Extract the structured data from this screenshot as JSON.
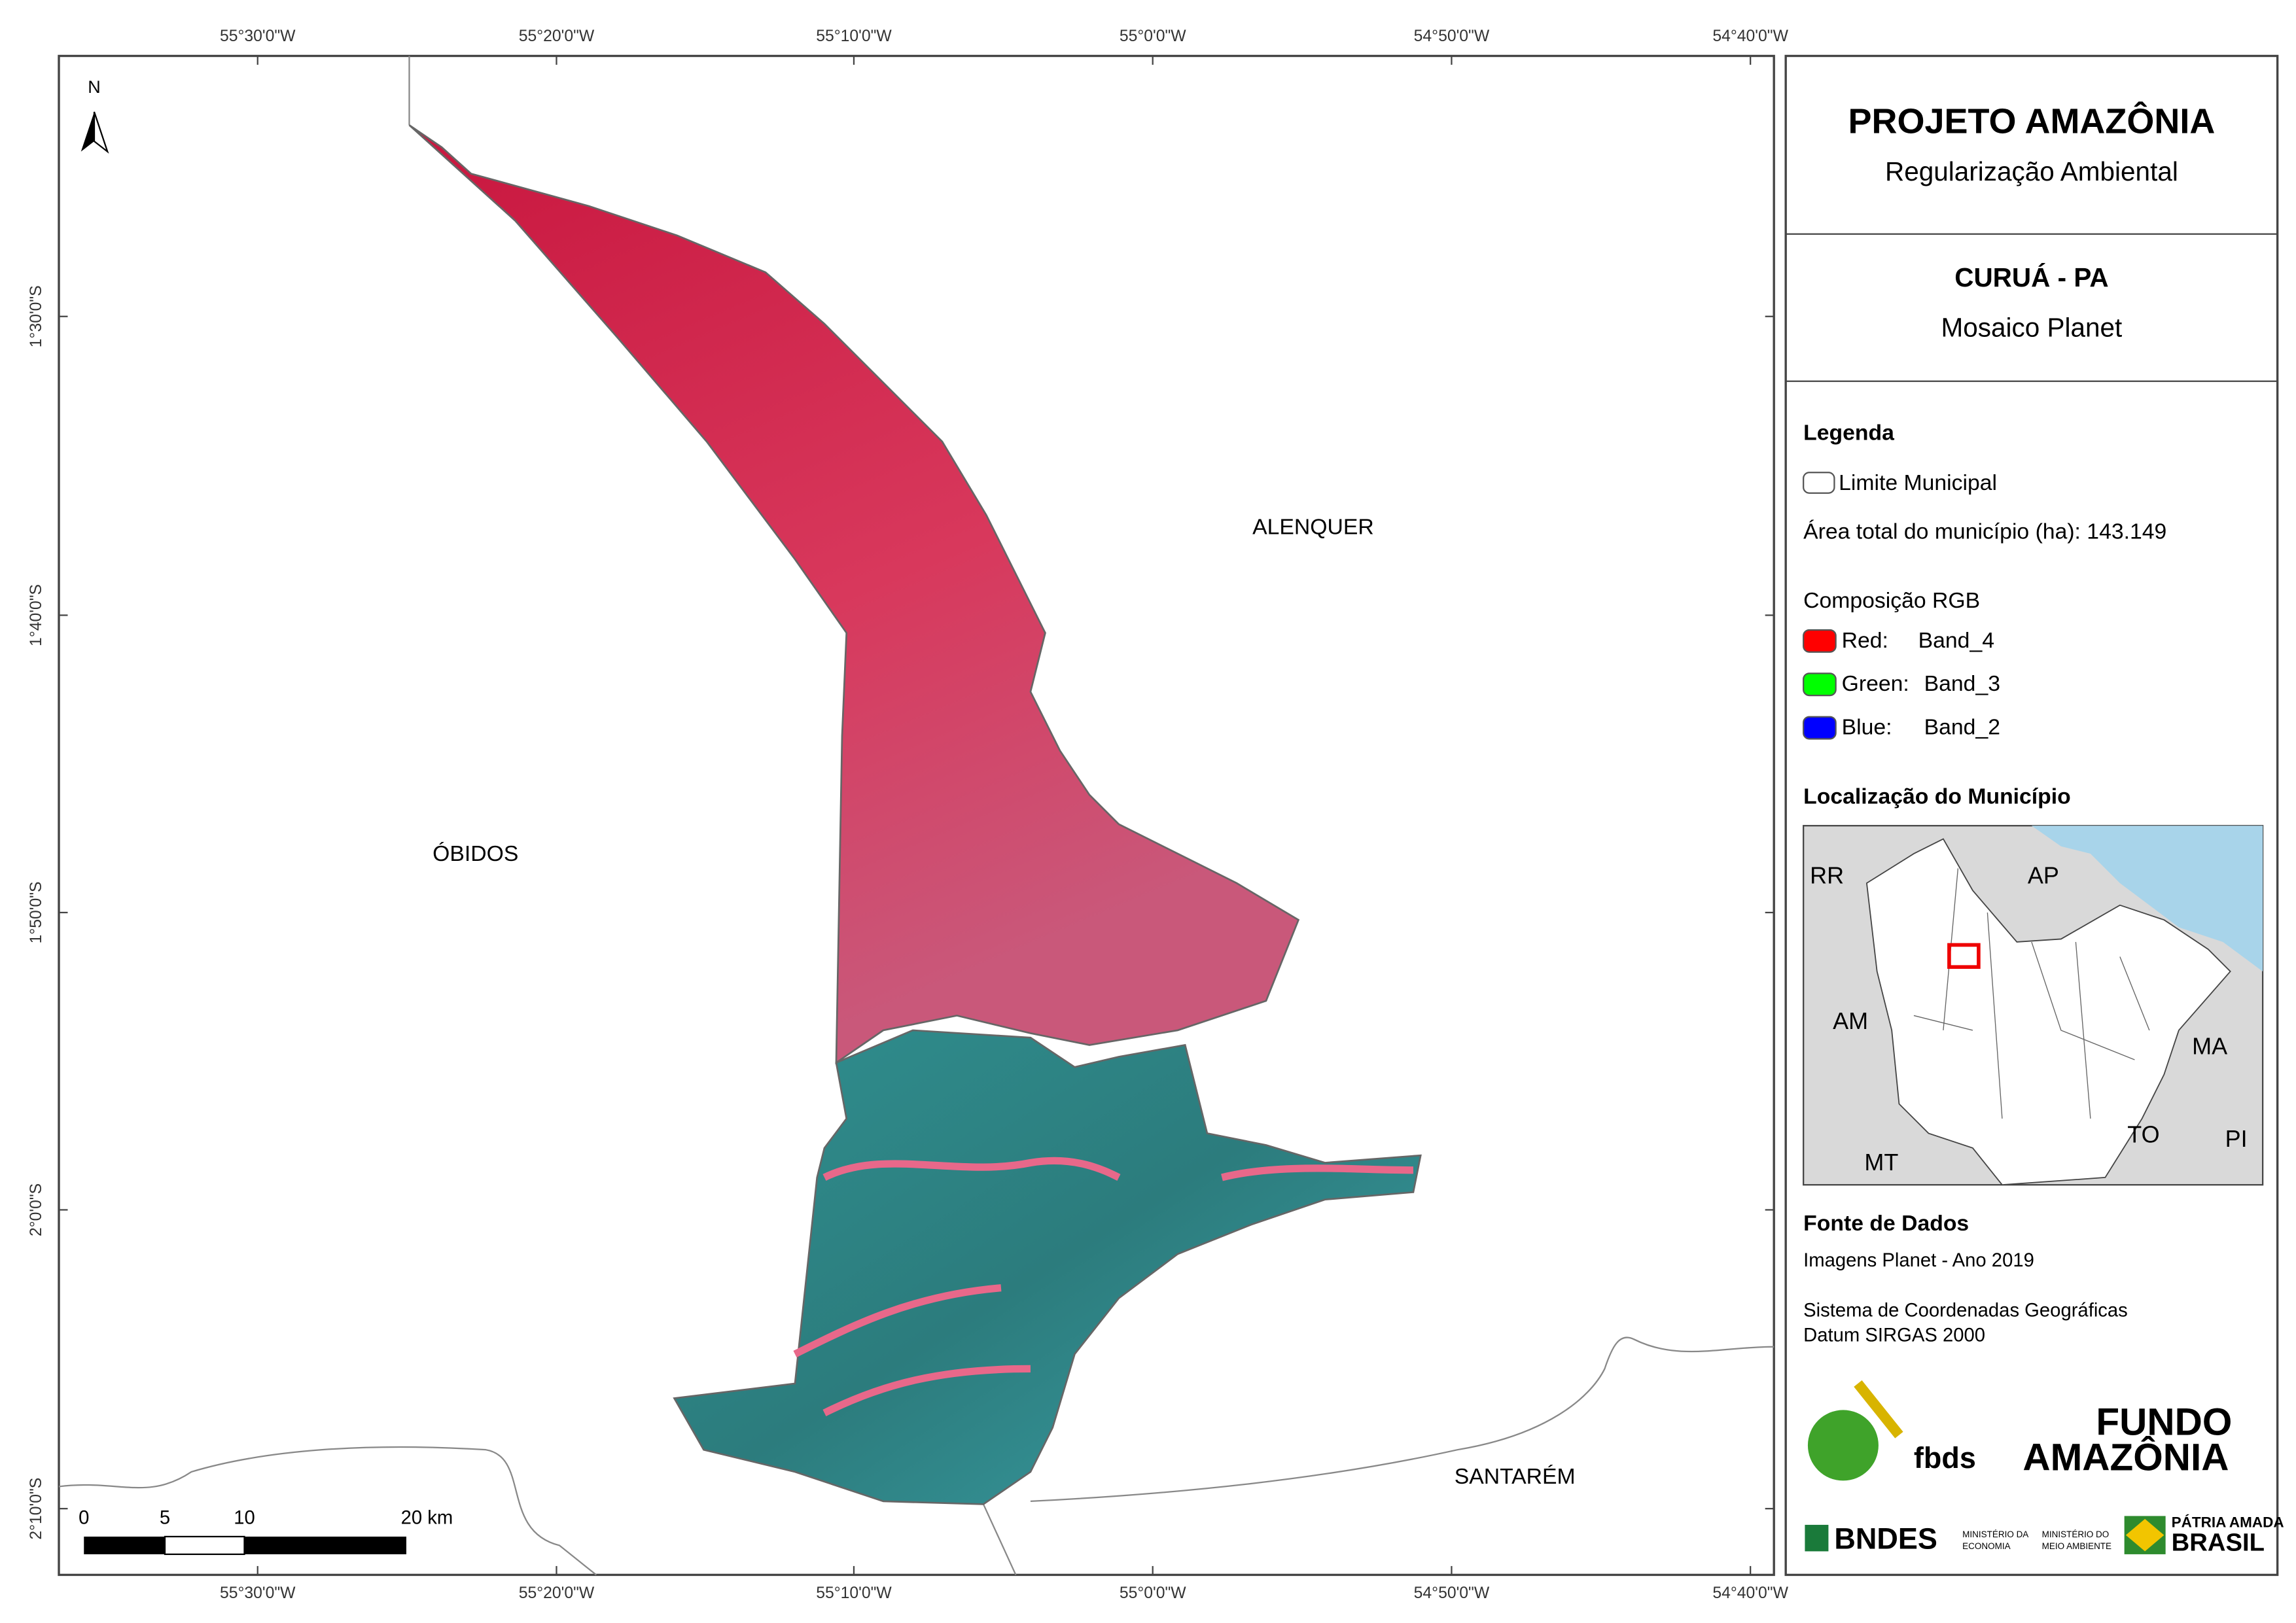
{
  "map": {
    "lon_labels": [
      "55°30'0\"W",
      "55°20'0\"W",
      "55°10'0\"W",
      "55°0'0\"W",
      "54°50'0\"W",
      "54°40'0\"W"
    ],
    "lat_labels": [
      "1°30'0\"S",
      "1°40'0\"S",
      "1°50'0\"S",
      "2°0'0\"S",
      "2°10'0\"S"
    ],
    "north": "N",
    "places": [
      "ALENQUER",
      "ÓBIDOS",
      "SANTARÉM"
    ],
    "scale_bar": [
      "0",
      "5",
      "10",
      "20 km"
    ]
  },
  "header": {
    "title": "PROJETO AMAZÔNIA",
    "subtitle": "Regularização Ambiental"
  },
  "area": {
    "title": "CURUÁ - PA",
    "subtitle": "Mosaico Planet"
  },
  "legend": {
    "title": "Legenda",
    "boundary": "Limite Municipal",
    "total_area": "Área total do município (ha): 143.149",
    "rgb_title": "Composição RGB",
    "bands": [
      {
        "label": "Red:",
        "band": "Band_4",
        "color": "#ff0000"
      },
      {
        "label": "Green:",
        "band": "Band_3",
        "color": "#00ff00"
      },
      {
        "label": "Blue:",
        "band": "Band_2",
        "color": "#0000ff"
      }
    ]
  },
  "location": {
    "title": "Localização do Município",
    "states": [
      "RR",
      "AP",
      "AM",
      "MA",
      "TO",
      "PI",
      "MT"
    ]
  },
  "sources": {
    "title": "Fonte de Dados",
    "lines": [
      "Imagens Planet - Ano 2019",
      "Sistema de Coordenadas Geográficas",
      "Datum SIRGAS 2000"
    ]
  },
  "logos": {
    "fbds": "fbds",
    "fundo": "FUNDO",
    "amazonia": "AMAZÔNIA",
    "bndes": "BNDES",
    "ministry_1": [
      "MINISTÉRIO DA",
      "ECONOMIA"
    ],
    "ministry_2": [
      "MINISTÉRIO DO",
      "MEIO AMBIENTE"
    ],
    "patria": "PÁTRIA AMADA",
    "brasil": "BRASIL"
  }
}
